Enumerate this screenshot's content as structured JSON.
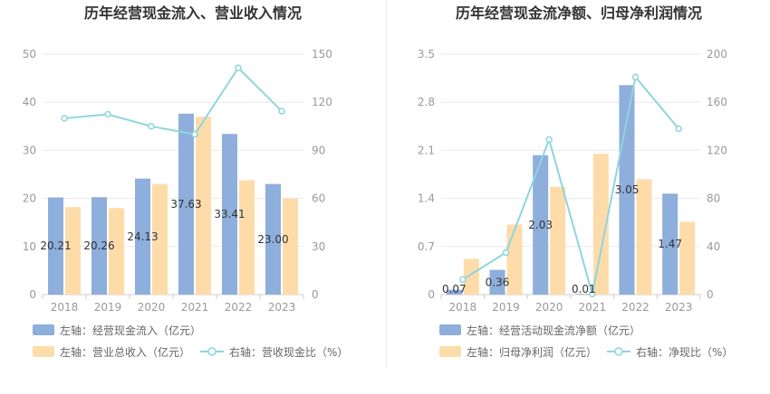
{
  "charts": [
    {
      "title": "历年经营现金流入、营业收入情况",
      "chart_data": {
        "type": "bar",
        "categories": [
          "2018",
          "2019",
          "2020",
          "2021",
          "2022",
          "2023"
        ],
        "series": [
          {
            "name": "左轴：经营现金流入（亿元）",
            "type": "bar",
            "axis": "left",
            "color": "#8eaedc",
            "values": [
              20.21,
              20.26,
              24.13,
              37.63,
              33.41,
              23.0
            ],
            "labels": [
              "20.21",
              "20.26",
              "24.13",
              "37.63",
              "33.41",
              "23.00"
            ]
          },
          {
            "name": "左轴：营业总收入（亿元）",
            "type": "bar",
            "axis": "left",
            "color": "#fedcaa",
            "values": [
              18.2,
              18.0,
              23.0,
              37.0,
              23.8,
              20.0
            ]
          },
          {
            "name": "右轴：营收现金比（%）",
            "type": "line",
            "axis": "right",
            "color": "#8fd5dc",
            "values": [
              110,
              112.5,
              105,
              100,
              141.5,
              114.5
            ]
          }
        ],
        "left_axis": {
          "min": 0,
          "max": 50,
          "ticks": [
            "0",
            "10",
            "20",
            "30",
            "40",
            "50"
          ]
        },
        "right_axis": {
          "min": 0,
          "max": 150,
          "ticks": [
            "0",
            "30",
            "60",
            "90",
            "120",
            "150"
          ]
        }
      }
    },
    {
      "title": "历年经营现金流净额、归母净利润情况",
      "chart_data": {
        "type": "bar",
        "categories": [
          "2018",
          "2019",
          "2020",
          "2021",
          "2022",
          "2023"
        ],
        "series": [
          {
            "name": "左轴：经营活动现金流净额（亿元）",
            "type": "bar",
            "axis": "left",
            "color": "#8eaedc",
            "values": [
              0.07,
              0.36,
              2.03,
              0.01,
              3.05,
              1.47
            ],
            "labels": [
              "0.07",
              "0.36",
              "2.03",
              "0.01",
              "3.05",
              "1.47"
            ]
          },
          {
            "name": "左轴：归母净利润（亿元）",
            "type": "bar",
            "axis": "left",
            "color": "#fedcaa",
            "values": [
              0.52,
              1.02,
              1.57,
              2.05,
              1.68,
              1.06
            ]
          },
          {
            "name": "右轴：净现比（%）",
            "type": "line",
            "axis": "right",
            "color": "#8fd5dc",
            "values": [
              12.5,
              35,
              129,
              0.5,
              181,
              138
            ]
          }
        ],
        "left_axis": {
          "min": 0,
          "max": 3.5,
          "ticks": [
            "0",
            "0.7",
            "1.4",
            "2.1",
            "2.8",
            "3.5"
          ]
        },
        "right_axis": {
          "min": 0,
          "max": 200,
          "ticks": [
            "0",
            "40",
            "80",
            "120",
            "160",
            "200"
          ]
        }
      }
    }
  ]
}
